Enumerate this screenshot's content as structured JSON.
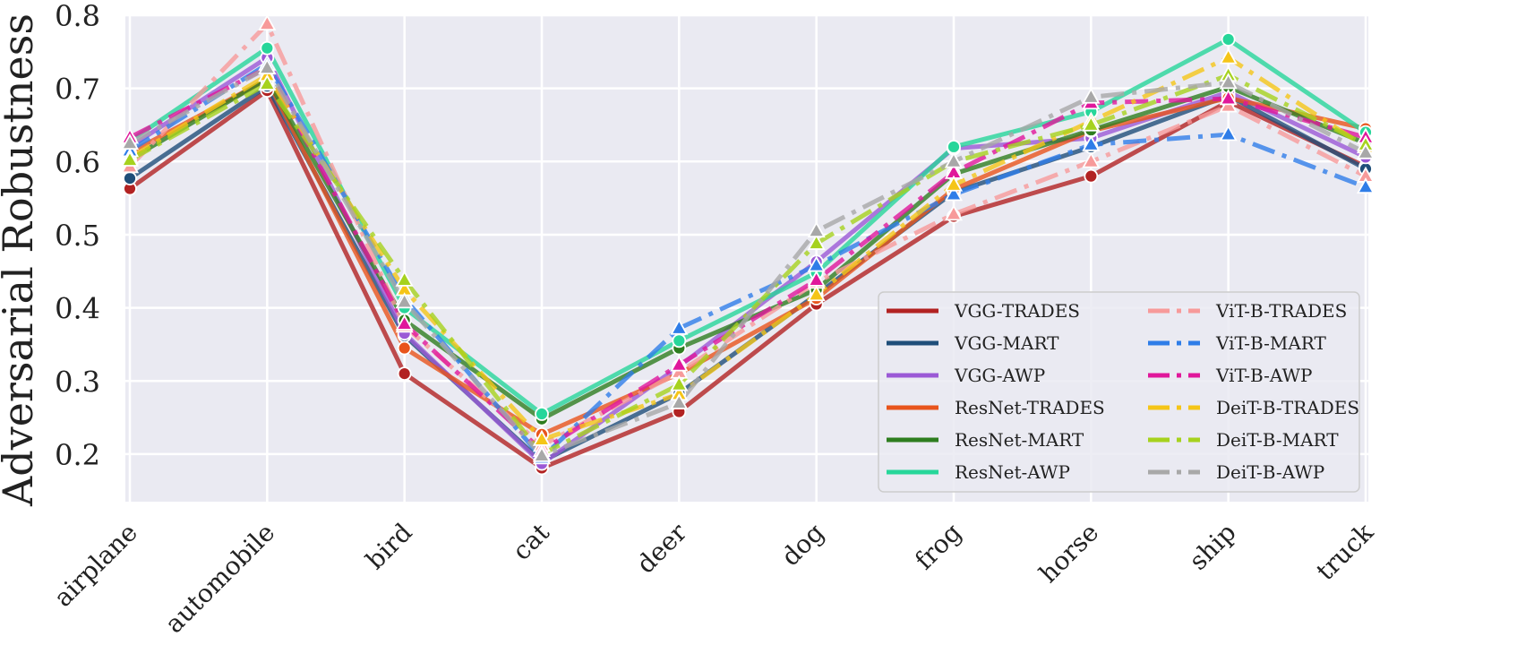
{
  "chart_data": {
    "type": "line",
    "title": "",
    "xlabel": "",
    "ylabel": "Adversarial Robustness",
    "categories": [
      "airplane",
      "automobile",
      "bird",
      "cat",
      "deer",
      "dog",
      "frog",
      "horse",
      "ship",
      "truck"
    ],
    "ylim": [
      0.135,
      0.8
    ],
    "yticks": [
      0.2,
      0.3,
      0.4,
      0.5,
      0.6,
      0.7,
      0.8
    ],
    "ytick_labels": [
      "0.2",
      "0.3",
      "0.4",
      "0.5",
      "0.6",
      "0.7",
      "0.8"
    ],
    "grid": true,
    "legend_position": "lower-right",
    "series": [
      {
        "name": "VGG-TRADES",
        "color": "#b22222",
        "dash": "solid",
        "marker": "circle",
        "values": [
          0.563,
          0.697,
          0.31,
          0.181,
          0.258,
          0.405,
          0.525,
          0.58,
          0.682,
          0.593
        ]
      },
      {
        "name": "VGG-MART",
        "color": "#1f4e79",
        "dash": "solid",
        "marker": "circle",
        "values": [
          0.577,
          0.703,
          0.362,
          0.19,
          0.283,
          0.418,
          0.558,
          0.62,
          0.69,
          0.59
        ]
      },
      {
        "name": "VGG-AWP",
        "color": "#9b59d6",
        "dash": "solid",
        "marker": "circle",
        "values": [
          0.62,
          0.742,
          0.365,
          0.187,
          0.32,
          0.463,
          0.618,
          0.632,
          0.695,
          0.606
        ]
      },
      {
        "name": "ResNet-TRADES",
        "color": "#e8541c",
        "dash": "solid",
        "marker": "circle",
        "values": [
          0.612,
          0.712,
          0.345,
          0.227,
          0.31,
          0.413,
          0.562,
          0.642,
          0.687,
          0.645
        ]
      },
      {
        "name": "ResNet-MART",
        "color": "#2e7d1f",
        "dash": "solid",
        "marker": "circle",
        "values": [
          0.603,
          0.713,
          0.383,
          0.248,
          0.345,
          0.425,
          0.583,
          0.643,
          0.702,
          0.625
        ]
      },
      {
        "name": "ResNet-AWP",
        "color": "#27d69a",
        "dash": "solid",
        "marker": "circle",
        "values": [
          0.628,
          0.755,
          0.4,
          0.255,
          0.355,
          0.448,
          0.62,
          0.668,
          0.767,
          0.64
        ]
      },
      {
        "name": "ViT-B-TRADES",
        "color": "#f79a9a",
        "dash": "dashdot",
        "marker": "triangle",
        "values": [
          0.593,
          0.788,
          0.375,
          0.212,
          0.312,
          0.435,
          0.528,
          0.6,
          0.676,
          0.58
        ]
      },
      {
        "name": "ViT-B-MART",
        "color": "#2f7de8",
        "dash": "dashdot",
        "marker": "triangle",
        "values": [
          0.615,
          0.733,
          0.413,
          0.195,
          0.372,
          0.458,
          0.555,
          0.623,
          0.637,
          0.565
        ]
      },
      {
        "name": "ViT-B-AWP",
        "color": "#e0179b",
        "dash": "dashdot",
        "marker": "triangle",
        "values": [
          0.633,
          0.728,
          0.378,
          0.205,
          0.322,
          0.438,
          0.585,
          0.68,
          0.686,
          0.633
        ]
      },
      {
        "name": "DeiT-B-TRADES",
        "color": "#f5c518",
        "dash": "dashdot",
        "marker": "triangle",
        "values": [
          0.605,
          0.718,
          0.425,
          0.22,
          0.282,
          0.418,
          0.568,
          0.655,
          0.742,
          0.62
        ]
      },
      {
        "name": "DeiT-B-MART",
        "color": "#a6d21e",
        "dash": "dashdot",
        "marker": "triangle",
        "values": [
          0.602,
          0.706,
          0.438,
          0.2,
          0.295,
          0.488,
          0.6,
          0.65,
          0.718,
          0.623
        ]
      },
      {
        "name": "DeiT-B-AWP",
        "color": "#a8a8a8",
        "dash": "dashdot",
        "marker": "triangle",
        "values": [
          0.625,
          0.728,
          0.408,
          0.198,
          0.27,
          0.505,
          0.6,
          0.688,
          0.708,
          0.612
        ]
      }
    ]
  }
}
